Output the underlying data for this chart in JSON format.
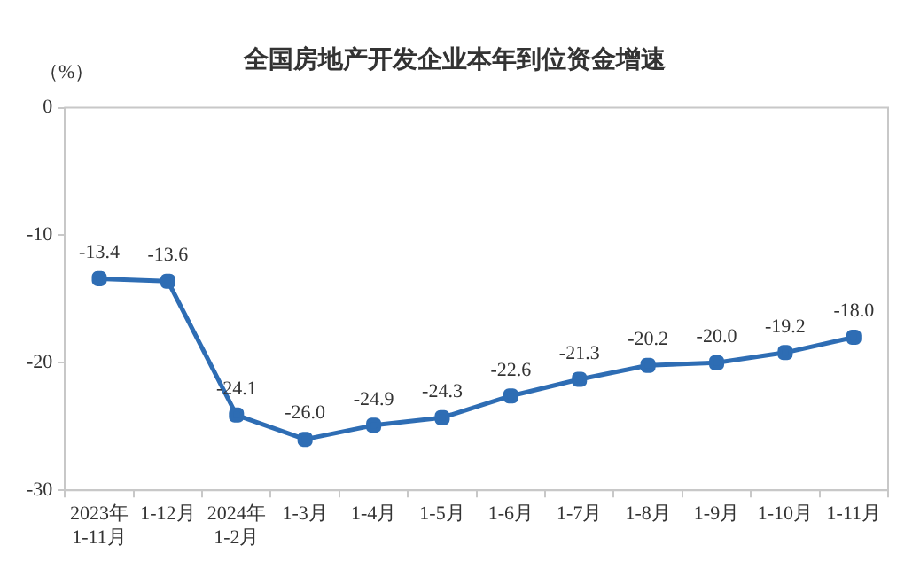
{
  "chart_data": {
    "type": "line",
    "title": "全国房地产开发企业本年到位资金增速",
    "ylabel": "（%）",
    "categories": [
      "2023年\n1-11月",
      "1-12月",
      "2024年\n1-2月",
      "1-3月",
      "1-4月",
      "1-5月",
      "1-6月",
      "1-7月",
      "1-8月",
      "1-9月",
      "1-10月",
      "1-11月"
    ],
    "series": [
      {
        "color": "#2e6db4",
        "values": [
          -13.4,
          -13.6,
          -24.1,
          -26.0,
          -24.9,
          -24.3,
          -22.6,
          -21.3,
          -20.2,
          -20.0,
          -19.2,
          -18.0
        ],
        "value_labels": [
          "-13.4",
          "-13.6",
          "-24.1",
          "-26.0",
          "-24.9",
          "-24.3",
          "-22.6",
          "-21.3",
          "-20.2",
          "-20.0",
          "-19.2",
          "-18.0"
        ]
      }
    ],
    "ylim": [
      -30,
      0
    ],
    "yticks": [
      -30,
      -20,
      -10,
      0
    ],
    "grid": false,
    "legend": false,
    "marker": "square",
    "line_style": "solid"
  }
}
